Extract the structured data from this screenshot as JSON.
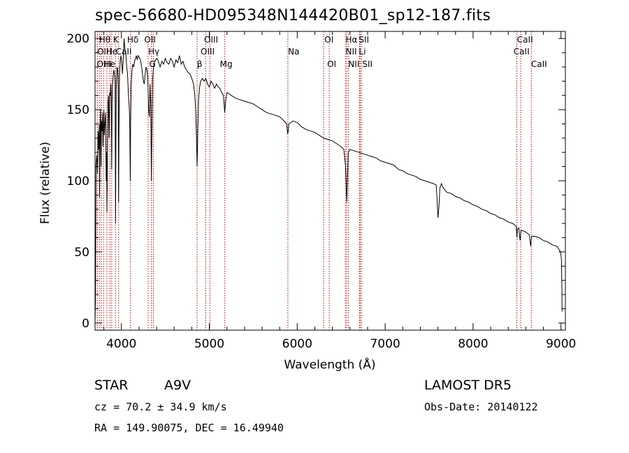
{
  "chart_data": {
    "type": "line",
    "title": "spec-56680-HD095348N144420B01_sp12-187.fits",
    "xlabel": "Wavelength (Å)",
    "ylabel": "Flux (relative)",
    "xlim": [
      3700,
      9050
    ],
    "ylim": [
      -5,
      205
    ],
    "xticks": [
      4000,
      5000,
      6000,
      7000,
      8000,
      9000
    ],
    "yticks": [
      0,
      50,
      100,
      150,
      200
    ],
    "grid": false,
    "series": [
      {
        "color": "#000000",
        "points": [
          [
            3700,
            0
          ],
          [
            3705,
            18
          ],
          [
            3712,
            112
          ],
          [
            3720,
            118
          ],
          [
            3728,
            105
          ],
          [
            3735,
            135
          ],
          [
            3742,
            122
          ],
          [
            3748,
            140
          ],
          [
            3752,
            88
          ],
          [
            3758,
            138
          ],
          [
            3763,
            150
          ],
          [
            3768,
            110
          ],
          [
            3773,
            142
          ],
          [
            3780,
            135
          ],
          [
            3785,
            148
          ],
          [
            3790,
            124
          ],
          [
            3795,
            138
          ],
          [
            3800,
            150
          ],
          [
            3806,
            132
          ],
          [
            3812,
            140
          ],
          [
            3820,
            148
          ],
          [
            3826,
            100
          ],
          [
            3831,
            120
          ],
          [
            3835,
            78
          ],
          [
            3840,
            110
          ],
          [
            3847,
            155
          ],
          [
            3853,
            160
          ],
          [
            3860,
            130
          ],
          [
            3866,
            162
          ],
          [
            3874,
            160
          ],
          [
            3880,
            168
          ],
          [
            3885,
            150
          ],
          [
            3889,
            108
          ],
          [
            3893,
            155
          ],
          [
            3900,
            168
          ],
          [
            3908,
            175
          ],
          [
            3915,
            178
          ],
          [
            3922,
            175
          ],
          [
            3928,
            168
          ],
          [
            3933,
            70
          ],
          [
            3936,
            110
          ],
          [
            3941,
            165
          ],
          [
            3950,
            180
          ],
          [
            3958,
            178
          ],
          [
            3963,
            165
          ],
          [
            3968,
            85
          ],
          [
            3972,
            135
          ],
          [
            3978,
            175
          ],
          [
            3988,
            185
          ],
          [
            3995,
            188
          ],
          [
            4005,
            182
          ],
          [
            4012,
            175
          ],
          [
            4020,
            185
          ],
          [
            4030,
            200
          ],
          [
            4040,
            192
          ],
          [
            4050,
            190
          ],
          [
            4060,
            180
          ],
          [
            4070,
            175
          ],
          [
            4080,
            160
          ],
          [
            4090,
            150
          ],
          [
            4095,
            138
          ],
          [
            4101,
            100
          ],
          [
            4105,
            140
          ],
          [
            4110,
            165
          ],
          [
            4120,
            178
          ],
          [
            4130,
            182
          ],
          [
            4140,
            180
          ],
          [
            4150,
            184
          ],
          [
            4160,
            186
          ],
          [
            4170,
            188
          ],
          [
            4180,
            185
          ],
          [
            4190,
            188
          ],
          [
            4200,
            187
          ],
          [
            4210,
            186
          ],
          [
            4220,
            184
          ],
          [
            4230,
            180
          ],
          [
            4240,
            175
          ],
          [
            4250,
            170
          ],
          [
            4260,
            168
          ],
          [
            4270,
            175
          ],
          [
            4280,
            180
          ],
          [
            4290,
            178
          ],
          [
            4300,
            172
          ],
          [
            4310,
            150
          ],
          [
            4318,
            145
          ],
          [
            4325,
            168
          ],
          [
            4333,
            155
          ],
          [
            4338,
            120
          ],
          [
            4341,
            100
          ],
          [
            4344,
            120
          ],
          [
            4350,
            150
          ],
          [
            4355,
            172
          ],
          [
            4365,
            180
          ],
          [
            4380,
            184
          ],
          [
            4400,
            186
          ],
          [
            4420,
            184
          ],
          [
            4440,
            180
          ],
          [
            4460,
            184
          ],
          [
            4480,
            182
          ],
          [
            4500,
            186
          ],
          [
            4520,
            183
          ],
          [
            4540,
            182
          ],
          [
            4560,
            186
          ],
          [
            4580,
            184
          ],
          [
            4600,
            180
          ],
          [
            4620,
            185
          ],
          [
            4640,
            183
          ],
          [
            4660,
            188
          ],
          [
            4680,
            182
          ],
          [
            4700,
            184
          ],
          [
            4720,
            180
          ],
          [
            4740,
            178
          ],
          [
            4760,
            176
          ],
          [
            4780,
            175
          ],
          [
            4800,
            172
          ],
          [
            4820,
            168
          ],
          [
            4835,
            160
          ],
          [
            4845,
            150
          ],
          [
            4852,
            135
          ],
          [
            4858,
            118
          ],
          [
            4861,
            110
          ],
          [
            4864,
            118
          ],
          [
            4870,
            140
          ],
          [
            4878,
            158
          ],
          [
            4890,
            166
          ],
          [
            4900,
            170
          ],
          [
            4920,
            172
          ],
          [
            4940,
            170
          ],
          [
            4960,
            172
          ],
          [
            4980,
            168
          ],
          [
            5000,
            166
          ],
          [
            5020,
            170
          ],
          [
            5040,
            168
          ],
          [
            5060,
            165
          ],
          [
            5080,
            168
          ],
          [
            5100,
            166
          ],
          [
            5120,
            165
          ],
          [
            5140,
            162
          ],
          [
            5160,
            160
          ],
          [
            5170,
            152
          ],
          [
            5175,
            148
          ],
          [
            5180,
            152
          ],
          [
            5190,
            158
          ],
          [
            5200,
            162
          ],
          [
            5250,
            160
          ],
          [
            5300,
            158
          ],
          [
            5350,
            157
          ],
          [
            5400,
            156
          ],
          [
            5450,
            155
          ],
          [
            5500,
            154
          ],
          [
            5550,
            152
          ],
          [
            5600,
            150
          ],
          [
            5650,
            148
          ],
          [
            5700,
            147
          ],
          [
            5750,
            146
          ],
          [
            5800,
            145
          ],
          [
            5850,
            142
          ],
          [
            5880,
            140
          ],
          [
            5890,
            133
          ],
          [
            5896,
            134
          ],
          [
            5905,
            140
          ],
          [
            5950,
            142
          ],
          [
            6000,
            141
          ],
          [
            6050,
            138
          ],
          [
            6100,
            136
          ],
          [
            6150,
            135
          ],
          [
            6200,
            134
          ],
          [
            6250,
            132
          ],
          [
            6300,
            130
          ],
          [
            6350,
            129
          ],
          [
            6400,
            128
          ],
          [
            6450,
            126
          ],
          [
            6500,
            124
          ],
          [
            6530,
            122
          ],
          [
            6550,
            110
          ],
          [
            6563,
            85
          ],
          [
            6570,
            98
          ],
          [
            6580,
            120
          ],
          [
            6600,
            122
          ],
          [
            6650,
            121
          ],
          [
            6700,
            120
          ],
          [
            6750,
            119
          ],
          [
            6800,
            118
          ],
          [
            6850,
            117
          ],
          [
            6900,
            116
          ],
          [
            6950,
            114
          ],
          [
            7000,
            113
          ],
          [
            7050,
            112
          ],
          [
            7100,
            111
          ],
          [
            7150,
            108
          ],
          [
            7200,
            107
          ],
          [
            7250,
            105
          ],
          [
            7300,
            104
          ],
          [
            7350,
            103
          ],
          [
            7400,
            101
          ],
          [
            7450,
            100
          ],
          [
            7500,
            99
          ],
          [
            7550,
            98
          ],
          [
            7580,
            97
          ],
          [
            7590,
            88
          ],
          [
            7600,
            74
          ],
          [
            7612,
            82
          ],
          [
            7622,
            95
          ],
          [
            7640,
            98
          ],
          [
            7660,
            95
          ],
          [
            7700,
            92
          ],
          [
            7750,
            91
          ],
          [
            7800,
            89
          ],
          [
            7850,
            88
          ],
          [
            7900,
            86
          ],
          [
            7950,
            85
          ],
          [
            8000,
            83
          ],
          [
            8050,
            82
          ],
          [
            8100,
            80
          ],
          [
            8150,
            79
          ],
          [
            8200,
            77
          ],
          [
            8250,
            76
          ],
          [
            8300,
            74
          ],
          [
            8350,
            73
          ],
          [
            8400,
            71
          ],
          [
            8450,
            70
          ],
          [
            8490,
            68
          ],
          [
            8498,
            60
          ],
          [
            8505,
            66
          ],
          [
            8520,
            67
          ],
          [
            8535,
            58
          ],
          [
            8545,
            65
          ],
          [
            8560,
            65
          ],
          [
            8600,
            64
          ],
          [
            8640,
            62
          ],
          [
            8655,
            54
          ],
          [
            8665,
            61
          ],
          [
            8700,
            61
          ],
          [
            8750,
            60
          ],
          [
            8800,
            58
          ],
          [
            8850,
            57
          ],
          [
            8900,
            55
          ],
          [
            8950,
            54
          ],
          [
            8975,
            52
          ],
          [
            8995,
            50
          ],
          [
            9005,
            45
          ],
          [
            9010,
            25
          ],
          [
            9012,
            8
          ]
        ]
      }
    ],
    "lines": [
      {
        "wave": 3727,
        "color": "#cc0000"
      },
      {
        "wave": 3750,
        "color": "#cc0000"
      },
      {
        "wave": 3771,
        "color": "#cc0000"
      },
      {
        "wave": 3798,
        "color": "#cc0000"
      },
      {
        "wave": 3835,
        "color": "#cc0000"
      },
      {
        "wave": 3869,
        "color": "#cc0000"
      },
      {
        "wave": 3889,
        "color": "#cc0000"
      },
      {
        "wave": 3934,
        "color": "#cc0000"
      },
      {
        "wave": 3969,
        "color": "#cc0000"
      },
      {
        "wave": 4102,
        "color": "#cc0000"
      },
      {
        "wave": 4304,
        "color": "#cc0000"
      },
      {
        "wave": 4341,
        "color": "#cc0000"
      },
      {
        "wave": 4363,
        "color": "#cc0000"
      },
      {
        "wave": 4861,
        "color": "#cc0000"
      },
      {
        "wave": 4959,
        "color": "#cc0000"
      },
      {
        "wave": 5007,
        "color": "#cc0000"
      },
      {
        "wave": 5176,
        "color": "#cc0000"
      },
      {
        "wave": 5893,
        "color": "#cc0000"
      },
      {
        "wave": 6300,
        "color": "#cc0000"
      },
      {
        "wave": 6364,
        "color": "#cc0000"
      },
      {
        "wave": 6548,
        "color": "#cc0000"
      },
      {
        "wave": 6563,
        "color": "#cc0000"
      },
      {
        "wave": 6583,
        "color": "#cc0000"
      },
      {
        "wave": 6708,
        "color": "#cc0000"
      },
      {
        "wave": 6716,
        "color": "#cc0000"
      },
      {
        "wave": 6731,
        "color": "#cc0000"
      },
      {
        "wave": 8498,
        "color": "#cc0000"
      },
      {
        "wave": 8542,
        "color": "#cc0000"
      },
      {
        "wave": 8662,
        "color": "#cc0000"
      }
    ],
    "annotations": [
      {
        "text": "Hθ",
        "wave": 3745,
        "row": 1
      },
      {
        "text": "K",
        "wave": 3905,
        "row": 1
      },
      {
        "text": "Hδ",
        "wave": 4065,
        "row": 1
      },
      {
        "text": "OII",
        "wave": 4260,
        "row": 1
      },
      {
        "text": "OIII",
        "wave": 4940,
        "row": 1
      },
      {
        "text": "OI",
        "wave": 6310,
        "row": 1
      },
      {
        "text": "Hα",
        "wave": 6550,
        "row": 1
      },
      {
        "text": "SII",
        "wave": 6700,
        "row": 1
      },
      {
        "text": "CaII",
        "wave": 8500,
        "row": 1
      },
      {
        "text": "OII",
        "wave": 3725,
        "row": 2
      },
      {
        "text": "He",
        "wave": 3825,
        "row": 2
      },
      {
        "text": "I",
        "wave": 3865,
        "row": 2
      },
      {
        "text": "CaII",
        "wave": 3935,
        "row": 2
      },
      {
        "text": "Hγ",
        "wave": 4305,
        "row": 2
      },
      {
        "text": "OIII",
        "wave": 4900,
        "row": 2
      },
      {
        "text": "Na",
        "wave": 5895,
        "row": 2
      },
      {
        "text": "NII",
        "wave": 6550,
        "row": 2
      },
      {
        "text": "Li",
        "wave": 6700,
        "row": 2
      },
      {
        "text": "CaII",
        "wave": 8460,
        "row": 2
      },
      {
        "text": "OII",
        "wave": 3720,
        "row": 3
      },
      {
        "text": "He",
        "wave": 3800,
        "row": 3
      },
      {
        "text": "I",
        "wave": 3860,
        "row": 3
      },
      {
        "text": "G",
        "wave": 4315,
        "row": 3
      },
      {
        "text": "β",
        "wave": 4860,
        "row": 3
      },
      {
        "text": "Mg",
        "wave": 5120,
        "row": 3
      },
      {
        "text": "OI",
        "wave": 6340,
        "row": 3
      },
      {
        "text": "NII",
        "wave": 6580,
        "row": 3
      },
      {
        "text": "SII",
        "wave": 6740,
        "row": 3
      },
      {
        "text": "CaII",
        "wave": 8660,
        "row": 3
      }
    ]
  },
  "info": {
    "class": "STAR",
    "subclass": "A9V",
    "survey": "LAMOST DR5",
    "redshift": "cz = 70.2 ± 34.9 km/s",
    "obs_date": "Obs-Date: 20140122",
    "coords": "RA = 149.90075, DEC =  16.49940"
  }
}
